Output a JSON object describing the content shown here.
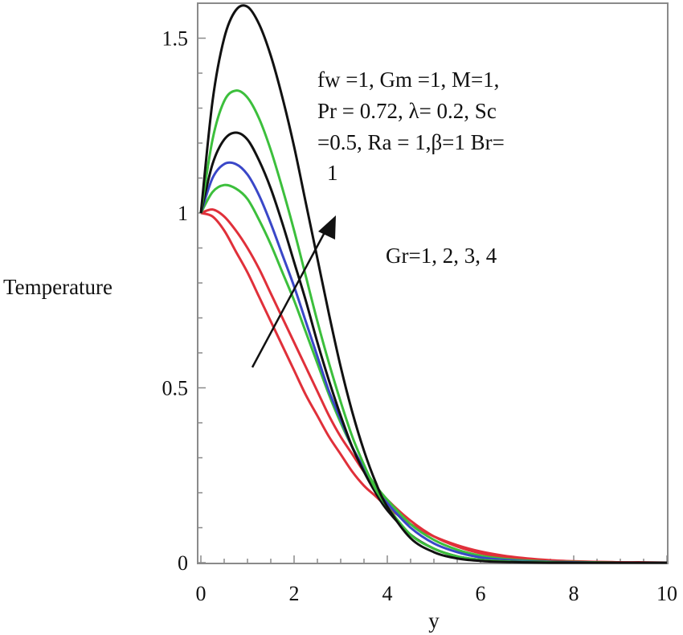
{
  "chart_data": {
    "type": "line",
    "title": "",
    "xlabel": "y",
    "ylabel": "Temperature",
    "xlim": [
      0,
      10
    ],
    "ylim": [
      0,
      1.6
    ],
    "x_ticks": [
      "0",
      "2",
      "4",
      "6",
      "8",
      "10"
    ],
    "y_ticks": [
      "0",
      "0.5",
      "1",
      "1.5"
    ],
    "grid": false,
    "annotations": [
      {
        "lines": [
          "fw =1, Gm =1, M=1,",
          "Pr = 0.72, λ= 0.2, Sc",
          "=0.5, Ra = 1,β=1 Br=",
          "1"
        ]
      },
      {
        "lines": [
          "Gr=1, 2, 3, 4"
        ]
      }
    ],
    "arrow_direction": "increasing Gr",
    "colors": {
      "black": "#111111",
      "green": "#3cbf3c",
      "blue": "#3a47c8",
      "red": "#e0303a"
    },
    "x": [
      0,
      0.25,
      0.5,
      0.75,
      1,
      1.25,
      1.5,
      1.75,
      2,
      2.25,
      2.5,
      2.75,
      3,
      3.25,
      3.5,
      3.75,
      4,
      4.5,
      5,
      5.5,
      6,
      6.5,
      7,
      7.5,
      8,
      8.5,
      9,
      9.5,
      10
    ],
    "series": [
      {
        "color": "black",
        "values": [
          1,
          1.32,
          1.5,
          1.58,
          1.59,
          1.54,
          1.45,
          1.33,
          1.19,
          1.03,
          0.87,
          0.71,
          0.56,
          0.43,
          0.32,
          0.23,
          0.16,
          0.07,
          0.03,
          0.012,
          0.005,
          0.002,
          0.001,
          0,
          0,
          0,
          0,
          0,
          0
        ]
      },
      {
        "color": "green",
        "values": [
          1,
          1.21,
          1.32,
          1.35,
          1.33,
          1.27,
          1.18,
          1.07,
          0.95,
          0.82,
          0.69,
          0.57,
          0.46,
          0.36,
          0.28,
          0.21,
          0.16,
          0.08,
          0.04,
          0.018,
          0.008,
          0.004,
          0.002,
          0.001,
          0,
          0,
          0,
          0,
          0
        ]
      },
      {
        "color": "black",
        "values": [
          1,
          1.14,
          1.21,
          1.23,
          1.21,
          1.15,
          1.07,
          0.97,
          0.86,
          0.75,
          0.63,
          0.52,
          0.42,
          0.33,
          0.26,
          0.2,
          0.15,
          0.08,
          0.04,
          0.018,
          0.008,
          0.004,
          0.002,
          0.001,
          0,
          0,
          0,
          0,
          0
        ]
      },
      {
        "color": "blue",
        "values": [
          1,
          1.1,
          1.14,
          1.14,
          1.11,
          1.05,
          0.97,
          0.88,
          0.79,
          0.69,
          0.59,
          0.49,
          0.41,
          0.33,
          0.27,
          0.21,
          0.17,
          0.1,
          0.055,
          0.03,
          0.015,
          0.008,
          0.004,
          0.002,
          0.001,
          0,
          0,
          0,
          0
        ]
      },
      {
        "color": "green",
        "values": [
          1,
          1.06,
          1.08,
          1.07,
          1.04,
          0.98,
          0.91,
          0.83,
          0.75,
          0.66,
          0.57,
          0.48,
          0.4,
          0.33,
          0.27,
          0.22,
          0.18,
          0.11,
          0.065,
          0.037,
          0.02,
          0.011,
          0.006,
          0.003,
          0.002,
          0.001,
          0,
          0,
          0
        ]
      },
      {
        "color": "red",
        "values": [
          1,
          1.01,
          0.99,
          0.95,
          0.9,
          0.84,
          0.77,
          0.7,
          0.63,
          0.56,
          0.49,
          0.42,
          0.36,
          0.31,
          0.26,
          0.22,
          0.18,
          0.12,
          0.075,
          0.046,
          0.027,
          0.016,
          0.009,
          0.005,
          0.003,
          0.002,
          0.001,
          0,
          0
        ]
      },
      {
        "color": "red",
        "values": [
          1,
          0.99,
          0.95,
          0.89,
          0.83,
          0.76,
          0.69,
          0.62,
          0.55,
          0.48,
          0.42,
          0.36,
          0.31,
          0.26,
          0.22,
          0.19,
          0.16,
          0.11,
          0.075,
          0.05,
          0.032,
          0.02,
          0.012,
          0.007,
          0.004,
          0.002,
          0.001,
          0.001,
          0
        ]
      }
    ]
  }
}
